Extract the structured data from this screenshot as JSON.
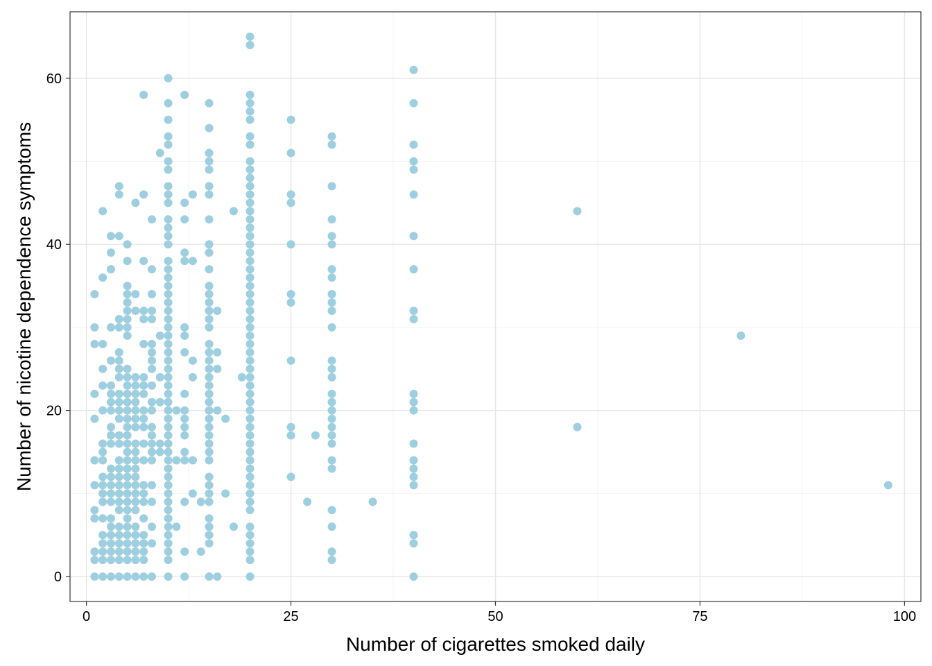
{
  "chart_data": {
    "type": "scatter",
    "title": "",
    "xlabel": "Number of cigarettes smoked daily",
    "ylabel": "Number of nicotine dependence symptoms",
    "xlim": [
      -2,
      102
    ],
    "ylim": [
      -3,
      68
    ],
    "x_ticks": [
      0,
      25,
      50,
      75,
      100
    ],
    "y_ticks": [
      0,
      20,
      40,
      60
    ],
    "x_tick_labels": [
      "0",
      "25",
      "50",
      "75",
      "100"
    ],
    "y_tick_labels": [
      "0",
      "20",
      "40",
      "60"
    ],
    "grid": true,
    "theme": "bw",
    "point_color": "#9ecfe0",
    "points": [
      [
        1,
        34
      ],
      [
        1,
        30
      ],
      [
        1,
        28
      ],
      [
        1,
        22
      ],
      [
        1,
        19
      ],
      [
        1,
        14
      ],
      [
        1,
        11
      ],
      [
        1,
        8
      ],
      [
        1,
        7
      ],
      [
        1,
        3
      ],
      [
        1,
        2
      ],
      [
        1,
        0
      ],
      [
        2,
        44
      ],
      [
        2,
        36
      ],
      [
        2,
        28
      ],
      [
        2,
        25
      ],
      [
        2,
        23
      ],
      [
        2,
        20
      ],
      [
        2,
        16
      ],
      [
        2,
        15
      ],
      [
        2,
        14
      ],
      [
        2,
        12
      ],
      [
        2,
        11
      ],
      [
        2,
        10
      ],
      [
        2,
        9
      ],
      [
        2,
        7
      ],
      [
        2,
        5
      ],
      [
        2,
        4
      ],
      [
        2,
        3
      ],
      [
        2,
        2
      ],
      [
        2,
        0
      ],
      [
        3,
        41
      ],
      [
        3,
        39
      ],
      [
        3,
        37
      ],
      [
        3,
        30
      ],
      [
        3,
        26
      ],
      [
        3,
        23
      ],
      [
        3,
        22
      ],
      [
        3,
        21
      ],
      [
        3,
        20
      ],
      [
        3,
        18
      ],
      [
        3,
        17
      ],
      [
        3,
        16
      ],
      [
        3,
        13
      ],
      [
        3,
        12
      ],
      [
        3,
        11
      ],
      [
        3,
        10
      ],
      [
        3,
        9
      ],
      [
        3,
        7
      ],
      [
        3,
        6
      ],
      [
        3,
        5
      ],
      [
        3,
        4
      ],
      [
        3,
        3
      ],
      [
        3,
        2
      ],
      [
        3,
        0
      ],
      [
        4,
        47
      ],
      [
        4,
        46
      ],
      [
        4,
        41
      ],
      [
        4,
        31
      ],
      [
        4,
        30
      ],
      [
        4,
        27
      ],
      [
        4,
        26
      ],
      [
        4,
        25
      ],
      [
        4,
        24
      ],
      [
        4,
        22
      ],
      [
        4,
        21
      ],
      [
        4,
        20
      ],
      [
        4,
        19
      ],
      [
        4,
        17
      ],
      [
        4,
        16
      ],
      [
        4,
        14
      ],
      [
        4,
        13
      ],
      [
        4,
        12
      ],
      [
        4,
        11
      ],
      [
        4,
        10
      ],
      [
        4,
        9
      ],
      [
        4,
        8
      ],
      [
        4,
        6
      ],
      [
        4,
        5
      ],
      [
        4,
        4
      ],
      [
        4,
        3
      ],
      [
        4,
        2
      ],
      [
        4,
        0
      ],
      [
        5,
        40
      ],
      [
        5,
        38
      ],
      [
        5,
        35
      ],
      [
        5,
        34
      ],
      [
        5,
        33
      ],
      [
        5,
        32
      ],
      [
        5,
        31
      ],
      [
        5,
        30
      ],
      [
        5,
        29
      ],
      [
        5,
        25
      ],
      [
        5,
        24
      ],
      [
        5,
        23
      ],
      [
        5,
        22
      ],
      [
        5,
        21
      ],
      [
        5,
        20
      ],
      [
        5,
        19
      ],
      [
        5,
        18
      ],
      [
        5,
        17
      ],
      [
        5,
        16
      ],
      [
        5,
        15
      ],
      [
        5,
        14
      ],
      [
        5,
        13
      ],
      [
        5,
        12
      ],
      [
        5,
        11
      ],
      [
        5,
        10
      ],
      [
        5,
        9
      ],
      [
        5,
        8
      ],
      [
        5,
        7
      ],
      [
        5,
        6
      ],
      [
        5,
        5
      ],
      [
        5,
        4
      ],
      [
        5,
        3
      ],
      [
        5,
        2
      ],
      [
        5,
        0
      ],
      [
        6,
        45
      ],
      [
        6,
        34
      ],
      [
        6,
        32
      ],
      [
        6,
        24
      ],
      [
        6,
        23
      ],
      [
        6,
        22
      ],
      [
        6,
        21
      ],
      [
        6,
        20
      ],
      [
        6,
        19
      ],
      [
        6,
        18
      ],
      [
        6,
        16
      ],
      [
        6,
        15
      ],
      [
        6,
        14
      ],
      [
        6,
        13
      ],
      [
        6,
        12
      ],
      [
        6,
        11
      ],
      [
        6,
        10
      ],
      [
        6,
        9
      ],
      [
        6,
        8
      ],
      [
        6,
        6
      ],
      [
        6,
        5
      ],
      [
        6,
        4
      ],
      [
        6,
        3
      ],
      [
        6,
        2
      ],
      [
        6,
        0
      ],
      [
        7,
        58
      ],
      [
        7,
        46
      ],
      [
        7,
        38
      ],
      [
        7,
        32
      ],
      [
        7,
        31
      ],
      [
        7,
        28
      ],
      [
        7,
        24
      ],
      [
        7,
        23
      ],
      [
        7,
        22
      ],
      [
        7,
        20
      ],
      [
        7,
        19
      ],
      [
        7,
        18
      ],
      [
        7,
        16
      ],
      [
        7,
        14
      ],
      [
        7,
        11
      ],
      [
        7,
        10
      ],
      [
        7,
        9
      ],
      [
        7,
        7
      ],
      [
        7,
        5
      ],
      [
        7,
        4
      ],
      [
        7,
        3
      ],
      [
        7,
        2
      ],
      [
        7,
        0
      ],
      [
        8,
        43
      ],
      [
        8,
        37
      ],
      [
        8,
        34
      ],
      [
        8,
        32
      ],
      [
        8,
        31
      ],
      [
        8,
        28
      ],
      [
        8,
        27
      ],
      [
        8,
        26
      ],
      [
        8,
        25
      ],
      [
        8,
        23
      ],
      [
        8,
        21
      ],
      [
        8,
        20
      ],
      [
        8,
        18
      ],
      [
        8,
        17
      ],
      [
        8,
        16
      ],
      [
        8,
        15
      ],
      [
        8,
        14
      ],
      [
        8,
        11
      ],
      [
        8,
        9
      ],
      [
        8,
        6
      ],
      [
        8,
        4
      ],
      [
        8,
        0
      ],
      [
        9,
        51
      ],
      [
        9,
        29
      ],
      [
        9,
        24
      ],
      [
        9,
        21
      ],
      [
        9,
        16
      ],
      [
        9,
        15
      ],
      [
        10,
        60
      ],
      [
        10,
        57
      ],
      [
        10,
        55
      ],
      [
        10,
        53
      ],
      [
        10,
        52
      ],
      [
        10,
        50
      ],
      [
        10,
        49
      ],
      [
        10,
        47
      ],
      [
        10,
        46
      ],
      [
        10,
        45
      ],
      [
        10,
        43
      ],
      [
        10,
        42
      ],
      [
        10,
        41
      ],
      [
        10,
        40
      ],
      [
        10,
        38
      ],
      [
        10,
        37
      ],
      [
        10,
        36
      ],
      [
        10,
        35
      ],
      [
        10,
        34
      ],
      [
        10,
        33
      ],
      [
        10,
        32
      ],
      [
        10,
        31
      ],
      [
        10,
        30
      ],
      [
        10,
        29
      ],
      [
        10,
        28
      ],
      [
        10,
        27
      ],
      [
        10,
        26
      ],
      [
        10,
        25
      ],
      [
        10,
        24
      ],
      [
        10,
        23
      ],
      [
        10,
        22
      ],
      [
        10,
        21
      ],
      [
        10,
        20
      ],
      [
        10,
        19
      ],
      [
        10,
        18
      ],
      [
        10,
        17
      ],
      [
        10,
        16
      ],
      [
        10,
        15
      ],
      [
        10,
        14
      ],
      [
        10,
        13
      ],
      [
        10,
        12
      ],
      [
        10,
        11
      ],
      [
        10,
        10
      ],
      [
        10,
        9
      ],
      [
        10,
        8
      ],
      [
        10,
        7
      ],
      [
        10,
        6
      ],
      [
        10,
        5
      ],
      [
        10,
        4
      ],
      [
        10,
        3
      ],
      [
        10,
        2
      ],
      [
        10,
        0
      ],
      [
        11,
        20
      ],
      [
        11,
        14
      ],
      [
        11,
        6
      ],
      [
        12,
        58
      ],
      [
        12,
        45
      ],
      [
        12,
        43
      ],
      [
        12,
        39
      ],
      [
        12,
        38
      ],
      [
        12,
        30
      ],
      [
        12,
        29
      ],
      [
        12,
        27
      ],
      [
        12,
        22
      ],
      [
        12,
        20
      ],
      [
        12,
        19
      ],
      [
        12,
        18
      ],
      [
        12,
        17
      ],
      [
        12,
        15
      ],
      [
        12,
        14
      ],
      [
        12,
        9
      ],
      [
        12,
        3
      ],
      [
        12,
        0
      ],
      [
        13,
        46
      ],
      [
        13,
        38
      ],
      [
        13,
        26
      ],
      [
        13,
        24
      ],
      [
        13,
        14
      ],
      [
        13,
        10
      ],
      [
        14,
        9
      ],
      [
        14,
        3
      ],
      [
        15,
        57
      ],
      [
        15,
        54
      ],
      [
        15,
        51
      ],
      [
        15,
        50
      ],
      [
        15,
        49
      ],
      [
        15,
        47
      ],
      [
        15,
        46
      ],
      [
        15,
        43
      ],
      [
        15,
        40
      ],
      [
        15,
        39
      ],
      [
        15,
        37
      ],
      [
        15,
        35
      ],
      [
        15,
        34
      ],
      [
        15,
        33
      ],
      [
        15,
        32
      ],
      [
        15,
        31
      ],
      [
        15,
        30
      ],
      [
        15,
        28
      ],
      [
        15,
        27
      ],
      [
        15,
        26
      ],
      [
        15,
        25
      ],
      [
        15,
        24
      ],
      [
        15,
        23
      ],
      [
        15,
        22
      ],
      [
        15,
        21
      ],
      [
        15,
        20
      ],
      [
        15,
        19
      ],
      [
        15,
        18
      ],
      [
        15,
        17
      ],
      [
        15,
        16
      ],
      [
        15,
        15
      ],
      [
        15,
        14
      ],
      [
        15,
        12
      ],
      [
        15,
        11
      ],
      [
        15,
        10
      ],
      [
        15,
        9
      ],
      [
        15,
        7
      ],
      [
        15,
        6
      ],
      [
        15,
        5
      ],
      [
        15,
        4
      ],
      [
        15,
        0
      ],
      [
        16,
        32
      ],
      [
        16,
        27
      ],
      [
        16,
        25
      ],
      [
        16,
        20
      ],
      [
        16,
        0
      ],
      [
        17,
        19
      ],
      [
        17,
        10
      ],
      [
        18,
        44
      ],
      [
        18,
        6
      ],
      [
        19,
        24
      ],
      [
        20,
        65
      ],
      [
        20,
        64
      ],
      [
        20,
        58
      ],
      [
        20,
        57
      ],
      [
        20,
        56
      ],
      [
        20,
        55
      ],
      [
        20,
        53
      ],
      [
        20,
        52
      ],
      [
        20,
        50
      ],
      [
        20,
        49
      ],
      [
        20,
        48
      ],
      [
        20,
        47
      ],
      [
        20,
        46
      ],
      [
        20,
        45
      ],
      [
        20,
        44
      ],
      [
        20,
        43
      ],
      [
        20,
        42
      ],
      [
        20,
        41
      ],
      [
        20,
        40
      ],
      [
        20,
        39
      ],
      [
        20,
        38
      ],
      [
        20,
        37
      ],
      [
        20,
        36
      ],
      [
        20,
        35
      ],
      [
        20,
        34
      ],
      [
        20,
        33
      ],
      [
        20,
        32
      ],
      [
        20,
        31
      ],
      [
        20,
        30
      ],
      [
        20,
        29
      ],
      [
        20,
        28
      ],
      [
        20,
        27
      ],
      [
        20,
        26
      ],
      [
        20,
        25
      ],
      [
        20,
        24
      ],
      [
        20,
        23
      ],
      [
        20,
        22
      ],
      [
        20,
        21
      ],
      [
        20,
        20
      ],
      [
        20,
        19
      ],
      [
        20,
        18
      ],
      [
        20,
        17
      ],
      [
        20,
        16
      ],
      [
        20,
        15
      ],
      [
        20,
        14
      ],
      [
        20,
        13
      ],
      [
        20,
        12
      ],
      [
        20,
        11
      ],
      [
        20,
        10
      ],
      [
        20,
        9
      ],
      [
        20,
        8
      ],
      [
        20,
        6
      ],
      [
        20,
        5
      ],
      [
        20,
        4
      ],
      [
        20,
        3
      ],
      [
        20,
        2
      ],
      [
        20,
        0
      ],
      [
        25,
        55
      ],
      [
        25,
        51
      ],
      [
        25,
        46
      ],
      [
        25,
        45
      ],
      [
        25,
        40
      ],
      [
        25,
        34
      ],
      [
        25,
        33
      ],
      [
        25,
        26
      ],
      [
        25,
        18
      ],
      [
        25,
        17
      ],
      [
        25,
        12
      ],
      [
        27,
        9
      ],
      [
        28,
        17
      ],
      [
        30,
        53
      ],
      [
        30,
        52
      ],
      [
        30,
        47
      ],
      [
        30,
        43
      ],
      [
        30,
        41
      ],
      [
        30,
        40
      ],
      [
        30,
        37
      ],
      [
        30,
        36
      ],
      [
        30,
        34
      ],
      [
        30,
        33
      ],
      [
        30,
        32
      ],
      [
        30,
        30
      ],
      [
        30,
        26
      ],
      [
        30,
        25
      ],
      [
        30,
        24
      ],
      [
        30,
        22
      ],
      [
        30,
        21
      ],
      [
        30,
        20
      ],
      [
        30,
        19
      ],
      [
        30,
        18
      ],
      [
        30,
        17
      ],
      [
        30,
        16
      ],
      [
        30,
        14
      ],
      [
        30,
        13
      ],
      [
        30,
        8
      ],
      [
        30,
        6
      ],
      [
        30,
        3
      ],
      [
        30,
        2
      ],
      [
        35,
        9
      ],
      [
        40,
        61
      ],
      [
        40,
        57
      ],
      [
        40,
        52
      ],
      [
        40,
        50
      ],
      [
        40,
        49
      ],
      [
        40,
        46
      ],
      [
        40,
        41
      ],
      [
        40,
        37
      ],
      [
        40,
        32
      ],
      [
        40,
        31
      ],
      [
        40,
        22
      ],
      [
        40,
        21
      ],
      [
        40,
        20
      ],
      [
        40,
        16
      ],
      [
        40,
        14
      ],
      [
        40,
        13
      ],
      [
        40,
        12
      ],
      [
        40,
        11
      ],
      [
        40,
        5
      ],
      [
        40,
        4
      ],
      [
        40,
        0
      ],
      [
        60,
        44
      ],
      [
        60,
        18
      ],
      [
        80,
        29
      ],
      [
        98,
        11
      ]
    ]
  }
}
